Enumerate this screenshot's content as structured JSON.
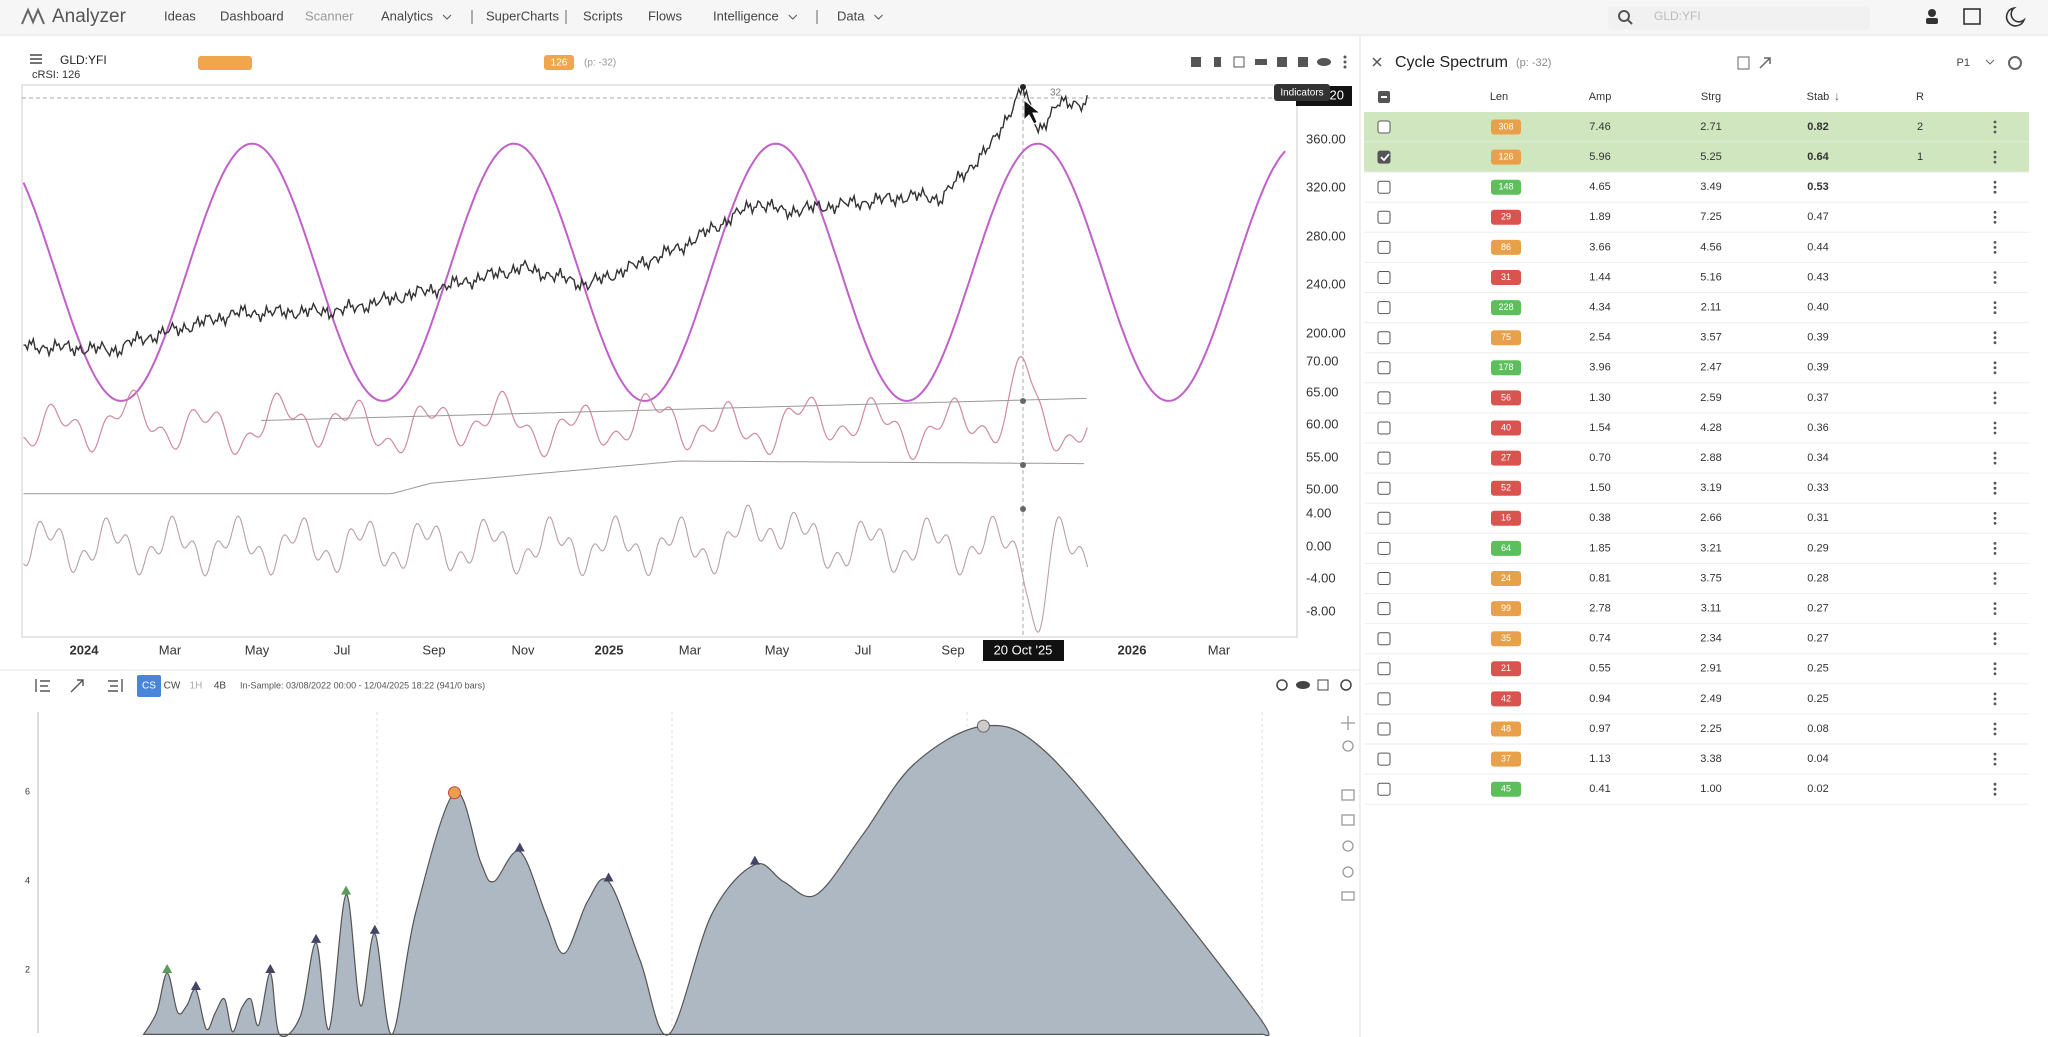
{
  "nav": {
    "logo": "Analyzer",
    "items": [
      "Ideas",
      "Dashboard",
      "Scanner",
      "Analytics",
      "SuperCharts",
      "Scripts",
      "Flows",
      "Intelligence",
      "Data"
    ],
    "search": "GLD:YFI"
  },
  "chart": {
    "symbol": "GLD:YFI",
    "indicator": "cRSI: 126",
    "badge": "126",
    "badge_note": "(p: -32)",
    "tooltip": "Indicators",
    "price_tag": "20",
    "peak_label": "32",
    "y_labels": [
      "360.00",
      "320.00",
      "280.00",
      "240.00",
      "200.00",
      "70.00",
      "65.00",
      "60.00",
      "55.00",
      "50.00",
      "4.00",
      "0.00",
      "-4.00",
      "-8.00"
    ],
    "x_labels": [
      "2024",
      "Mar",
      "May",
      "Jul",
      "Sep",
      "Nov",
      "2025",
      "Mar",
      "May",
      "Jul",
      "Sep",
      "2026",
      "Mar"
    ],
    "cursor_date": "20 Oct '25"
  },
  "spectrum": {
    "modes": [
      "CS",
      "CW",
      "1H",
      "4B"
    ],
    "in_sample": "In-Sample: 03/08/2022 00:00 - 12/04/2025 18:22 (941/0 bars)",
    "y_labels": [
      "6",
      "4",
      "2"
    ]
  },
  "panel": {
    "title": "Cycle Spectrum",
    "subtitle": "(p: -32)",
    "preset": "P1",
    "columns": [
      "Len",
      "Amp",
      "Strg",
      "Stab",
      "R"
    ],
    "rows": [
      {
        "len": "308",
        "amp": "7.46",
        "strg": "2.71",
        "stab": "0.82",
        "r": "2",
        "color": "#e8a04a",
        "checked": false,
        "highlighted": true
      },
      {
        "len": "126",
        "amp": "5.96",
        "strg": "5.25",
        "stab": "0.64",
        "r": "1",
        "color": "#e8a04a",
        "checked": true,
        "highlighted": true
      },
      {
        "len": "148",
        "amp": "4.65",
        "strg": "3.49",
        "stab": "0.53",
        "color": "#5cbf5c",
        "checked": false,
        "highlighted": false
      },
      {
        "len": "29",
        "amp": "1.89",
        "strg": "7.25",
        "stab": "0.47",
        "color": "#d9534f",
        "checked": false,
        "highlighted": false
      },
      {
        "len": "86",
        "amp": "3.66",
        "strg": "4.56",
        "stab": "0.44",
        "color": "#e8a04a",
        "checked": false,
        "highlighted": false
      },
      {
        "len": "31",
        "amp": "1.44",
        "strg": "5.16",
        "stab": "0.43",
        "color": "#d9534f",
        "checked": false,
        "highlighted": false
      },
      {
        "len": "228",
        "amp": "4.34",
        "strg": "2.11",
        "stab": "0.40",
        "color": "#5cbf5c",
        "checked": false,
        "highlighted": false
      },
      {
        "len": "75",
        "amp": "2.54",
        "strg": "3.57",
        "stab": "0.39",
        "color": "#e8a04a",
        "checked": false,
        "highlighted": false
      },
      {
        "len": "178",
        "amp": "3.96",
        "strg": "2.47",
        "stab": "0.39",
        "color": "#5cbf5c",
        "checked": false,
        "highlighted": false
      },
      {
        "len": "56",
        "amp": "1.30",
        "strg": "2.59",
        "stab": "0.37",
        "color": "#d9534f",
        "checked": false,
        "highlighted": false
      },
      {
        "len": "40",
        "amp": "1.54",
        "strg": "4.28",
        "stab": "0.36",
        "color": "#d9534f",
        "checked": false,
        "highlighted": false
      },
      {
        "len": "27",
        "amp": "0.70",
        "strg": "2.88",
        "stab": "0.34",
        "color": "#d9534f",
        "checked": false,
        "highlighted": false
      },
      {
        "len": "52",
        "amp": "1.50",
        "strg": "3.19",
        "stab": "0.33",
        "color": "#d9534f",
        "checked": false,
        "highlighted": false
      },
      {
        "len": "16",
        "amp": "0.38",
        "strg": "2.66",
        "stab": "0.31",
        "color": "#d9534f",
        "checked": false,
        "highlighted": false
      },
      {
        "len": "64",
        "amp": "1.85",
        "strg": "3.21",
        "stab": "0.29",
        "color": "#5cbf5c",
        "checked": false,
        "highlighted": false
      },
      {
        "len": "24",
        "amp": "0.81",
        "strg": "3.75",
        "stab": "0.28",
        "color": "#e8a04a",
        "checked": false,
        "highlighted": false
      },
      {
        "len": "99",
        "amp": "2.78",
        "strg": "3.11",
        "stab": "0.27",
        "color": "#e8a04a",
        "checked": false,
        "highlighted": false
      },
      {
        "len": "35",
        "amp": "0.74",
        "strg": "2.34",
        "stab": "0.27",
        "color": "#e8a04a",
        "checked": false,
        "highlighted": false
      },
      {
        "len": "21",
        "amp": "0.55",
        "strg": "2.91",
        "stab": "0.25",
        "color": "#d9534f",
        "checked": false,
        "highlighted": false
      },
      {
        "len": "42",
        "amp": "0.94",
        "strg": "2.49",
        "stab": "0.25",
        "color": "#d9534f",
        "checked": false,
        "highlighted": false
      },
      {
        "len": "48",
        "amp": "0.97",
        "strg": "2.25",
        "stab": "0.08",
        "color": "#e8a04a",
        "checked": false,
        "highlighted": false
      },
      {
        "len": "37",
        "amp": "1.13",
        "strg": "3.38",
        "stab": "0.04",
        "color": "#e8a04a",
        "checked": false,
        "highlighted": false
      },
      {
        "len": "45",
        "amp": "0.41",
        "strg": "1.00",
        "stab": "0.02",
        "color": "#5cbf5c",
        "checked": false,
        "highlighted": false
      }
    ]
  }
}
